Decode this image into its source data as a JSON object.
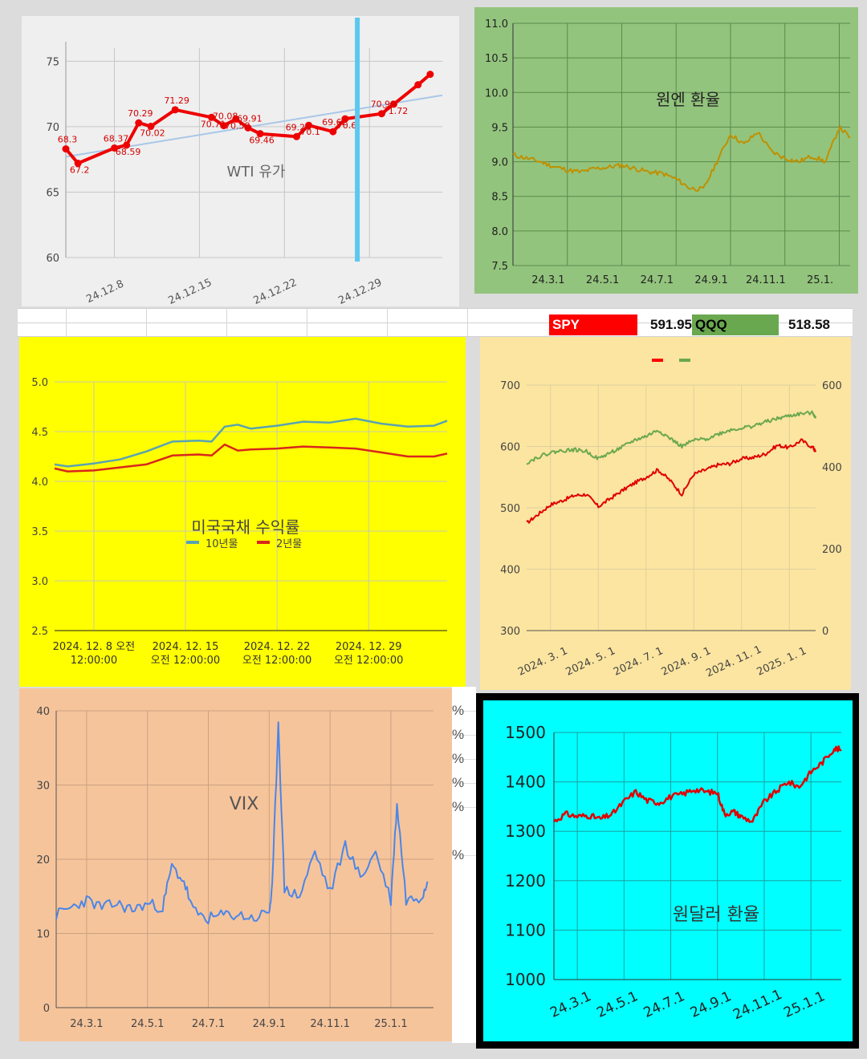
{
  "ticker": {
    "spy_label": "SPY",
    "spy_value": "591.95",
    "qqq_label": "QQQ",
    "qqq_value": "518.58",
    "spy_color": "#ff0000",
    "qqq_color": "#6aa84f"
  },
  "side_strip": {
    "percent_marks": [
      "%",
      "%",
      "%",
      "%",
      "%",
      "%"
    ]
  },
  "chart_data": [
    {
      "id": "wti",
      "type": "line",
      "title": "WTI 유가",
      "background": "#efefef",
      "series_color": "#ee0000",
      "trend_color": "#a9c7e8",
      "marker_color": "#5bc8f0",
      "x_ticks": [
        "24.12.8",
        "24.12.15",
        "24.12.22",
        "24.12.29"
      ],
      "x_tick_days": [
        8,
        15,
        22,
        29
      ],
      "xlim": [
        4,
        35
      ],
      "ylim": [
        60,
        76
      ],
      "y_ticks": [
        60,
        65,
        70,
        75
      ],
      "x_days": [
        4,
        5,
        8,
        9,
        10,
        11,
        13,
        16,
        17,
        18,
        19,
        20,
        23,
        24,
        26,
        27,
        30,
        31,
        33,
        34
      ],
      "values": [
        68.3,
        67.2,
        68.37,
        68.59,
        70.29,
        70.02,
        71.29,
        70.71,
        70.08,
        70.58,
        69.91,
        69.46,
        69.24,
        70.1,
        69.62,
        70.6,
        70.99,
        71.72,
        73.2,
        74.0
      ],
      "data_labels": [
        "68.3",
        "67.2",
        "68.37",
        "68.59",
        "70.29",
        "70.02",
        "71.29",
        "70.71",
        "70.08",
        "70.58",
        "69.91",
        "69.46",
        "69.24",
        "70.1",
        "69.62",
        "70.6",
        "70.99",
        "71.72",
        "",
        ""
      ],
      "trend_start": 67.7,
      "trend_end": 72.4,
      "vertical_marker_day": 28
    },
    {
      "id": "jpy",
      "type": "line",
      "title": "원엔 환율",
      "background": "#93c47d",
      "series_color": "#bf9000",
      "x_ticks": [
        "24.3.1",
        "24.5.1",
        "24.7.1",
        "24.9.1",
        "24.11.1",
        "25.1."
      ],
      "xlim": [
        0,
        12.4
      ],
      "ylim": [
        7.5,
        11.0
      ],
      "y_ticks": [
        7.5,
        8.0,
        8.5,
        9.0,
        9.5,
        10.0,
        10.5,
        11.0
      ],
      "y_tick_labels": [
        "7.5",
        "8.0",
        "8.5",
        "9.0",
        "9.5",
        "10.0",
        "10.5",
        "11.0"
      ],
      "x_months": [
        0,
        0.5,
        1,
        1.5,
        2,
        2.5,
        3,
        3.5,
        4,
        4.5,
        5,
        5.5,
        6,
        6.5,
        7,
        7.5,
        8,
        8.5,
        9,
        9.5,
        10,
        10.5,
        11,
        11.5,
        12,
        12.4
      ],
      "values": [
        9.1,
        9.05,
        9.0,
        8.93,
        8.88,
        8.85,
        8.9,
        8.92,
        8.95,
        8.9,
        8.85,
        8.83,
        8.75,
        8.62,
        8.6,
        9.0,
        9.4,
        9.25,
        9.43,
        9.15,
        9.05,
        9.0,
        9.08,
        9.0,
        9.5,
        9.35
      ]
    },
    {
      "id": "ust",
      "type": "line",
      "title": "미국국채 수익률",
      "background": "#ffff00",
      "x_ticks": [
        "2024. 12. 8 오전\n12:00:00",
        "2024. 12. 15\n오전 12:00:00",
        "2024. 12. 22\n오전 12:00:00",
        "2024. 12. 29\n오전 12:00:00"
      ],
      "x_tick_days": [
        8,
        15,
        22,
        29
      ],
      "xlim": [
        5,
        35
      ],
      "ylim": [
        2.5,
        5.0
      ],
      "y_ticks": [
        2.5,
        3.0,
        3.5,
        4.0,
        4.5,
        5.0
      ],
      "y_tick_labels": [
        "2.5",
        "3.0",
        "3.5",
        "4.0",
        "4.5",
        "5.0"
      ],
      "legend": [
        {
          "name": "10년물",
          "color": "#5aa3b0"
        },
        {
          "name": "2년물",
          "color": "#d9261c"
        }
      ],
      "x_days": [
        5,
        6,
        8,
        10,
        12,
        14,
        16,
        17,
        18,
        19,
        20,
        22,
        24,
        26,
        28,
        30,
        32,
        34,
        35
      ],
      "series": [
        {
          "name": "10년물",
          "values": [
            4.17,
            4.15,
            4.18,
            4.22,
            4.3,
            4.4,
            4.41,
            4.4,
            4.55,
            4.57,
            4.53,
            4.56,
            4.6,
            4.59,
            4.63,
            4.58,
            4.55,
            4.56,
            4.61
          ]
        },
        {
          "name": "2년물",
          "values": [
            4.13,
            4.1,
            4.11,
            4.14,
            4.17,
            4.26,
            4.27,
            4.26,
            4.37,
            4.31,
            4.32,
            4.33,
            4.35,
            4.34,
            4.33,
            4.29,
            4.25,
            4.25,
            4.28
          ]
        }
      ]
    },
    {
      "id": "spy_qqq",
      "type": "line",
      "background": "#fce5a0",
      "x_ticks": [
        "2024. 3. 1",
        "2024. 5. 1",
        "2024. 7. 1",
        "2024. 9. 1",
        "2024. 11. 1",
        "2025. 1. 1"
      ],
      "xlim": [
        0,
        12.1
      ],
      "ylim_left": [
        300,
        700
      ],
      "y_ticks_left": [
        300,
        400,
        500,
        600,
        700
      ],
      "ylim_right": [
        0,
        600
      ],
      "y_ticks_right": [
        0,
        200,
        400,
        600
      ],
      "legend": [
        {
          "name": "",
          "color": "#ff0000"
        },
        {
          "name": "",
          "color": "#6aa84f"
        }
      ],
      "x_months": [
        0,
        0.5,
        1,
        1.5,
        2,
        2.5,
        3,
        3.5,
        4,
        4.5,
        5,
        5.5,
        6,
        6.5,
        7,
        7.5,
        8,
        8.5,
        9,
        9.5,
        10,
        10.5,
        11,
        11.5,
        12,
        12.1
      ],
      "series": [
        {
          "name": "SPY",
          "axis": "left",
          "color": "#e00000",
          "values": [
            475,
            490,
            505,
            512,
            520,
            522,
            502,
            515,
            528,
            540,
            550,
            562,
            545,
            522,
            555,
            562,
            570,
            572,
            580,
            582,
            588,
            602,
            598,
            610,
            598,
            591
          ]
        },
        {
          "name": "QQQ",
          "axis": "right",
          "color": "#6aa84f",
          "values": [
            410,
            425,
            435,
            440,
            442,
            438,
            420,
            435,
            448,
            465,
            475,
            490,
            470,
            450,
            465,
            468,
            480,
            490,
            495,
            500,
            510,
            518,
            525,
            530,
            532,
            519
          ]
        }
      ]
    },
    {
      "id": "vix",
      "type": "line",
      "title": "VIX",
      "background": "#f6c49b",
      "series_color": "#4a86e8",
      "x_ticks": [
        "24.3.1",
        "24.5.1",
        "24.7.1",
        "24.9.1",
        "24.11.1",
        "25.1.1"
      ],
      "xlim": [
        0,
        12.4
      ],
      "ylim": [
        0,
        40
      ],
      "y_ticks": [
        0,
        10,
        20,
        30,
        40
      ],
      "x_months": [
        0,
        0.5,
        1,
        1.5,
        2,
        2.5,
        3,
        3.5,
        3.8,
        4.2,
        4.5,
        5,
        5.5,
        6,
        6.5,
        7,
        7.1,
        7.3,
        7.5,
        8,
        8.5,
        9,
        9.5,
        10,
        10.5,
        11,
        11.2,
        11.5,
        12,
        12.2
      ],
      "values": [
        12.5,
        13.5,
        14.5,
        13.5,
        14.0,
        13.2,
        14.0,
        13.5,
        19.0,
        17.0,
        13.0,
        12.0,
        12.5,
        12.5,
        12.0,
        13.0,
        16.0,
        38.5,
        16.0,
        15.0,
        21.0,
        15.5,
        22.0,
        17.5,
        21.0,
        14.5,
        27.5,
        14.5,
        15.0,
        17.0
      ]
    },
    {
      "id": "krw",
      "type": "line",
      "title": "원달러 환율",
      "background": "#00ffff",
      "series_color": "#e00000",
      "x_ticks": [
        "24.3.1",
        "24.5.1",
        "24.7.1",
        "24.9.1",
        "24.11.1",
        "25.1.1"
      ],
      "xlim": [
        0,
        12.3
      ],
      "ylim": [
        1000,
        1500
      ],
      "y_ticks": [
        1000,
        1100,
        1200,
        1300,
        1400,
        1500
      ],
      "x_months": [
        0,
        0.5,
        1,
        1.5,
        2,
        2.5,
        3,
        3.5,
        4,
        4.5,
        5,
        5.5,
        6,
        6.5,
        7,
        7.3,
        7.7,
        8,
        8.5,
        9,
        9.5,
        10,
        10.5,
        11,
        11.5,
        12,
        12.3
      ],
      "values": [
        1320,
        1335,
        1330,
        1332,
        1325,
        1335,
        1360,
        1380,
        1362,
        1358,
        1370,
        1375,
        1385,
        1380,
        1378,
        1335,
        1340,
        1330,
        1320,
        1360,
        1380,
        1400,
        1390,
        1420,
        1440,
        1468,
        1465
      ]
    }
  ]
}
